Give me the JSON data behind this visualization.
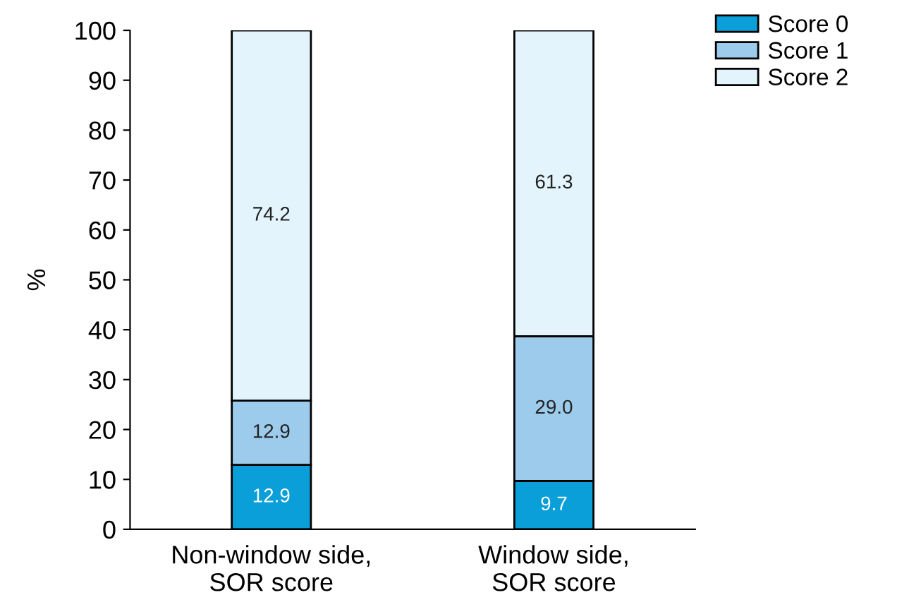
{
  "chart_data": {
    "type": "bar",
    "stacked": true,
    "ylabel": "%",
    "categories": [
      "Non-window side,\nSOR score",
      "Window side,\nSOR score"
    ],
    "series": [
      {
        "name": "Score 0",
        "color": "#0a9fd8",
        "values": [
          12.9,
          9.7
        ],
        "value_labels": [
          "12.9",
          "9.7"
        ]
      },
      {
        "name": "Score 1",
        "color": "#9ccbec",
        "values": [
          12.9,
          29.0
        ],
        "value_labels": [
          "12.9",
          "29.0"
        ]
      },
      {
        "name": "Score 2",
        "color": "#e3f4fc",
        "values": [
          74.2,
          61.3
        ],
        "value_labels": [
          "74.2",
          "61.3"
        ]
      }
    ],
    "ylim": [
      0,
      100
    ],
    "yticks": [
      0,
      10,
      20,
      30,
      40,
      50,
      60,
      70,
      80,
      90,
      100
    ],
    "legend": "top right",
    "grid": false
  }
}
